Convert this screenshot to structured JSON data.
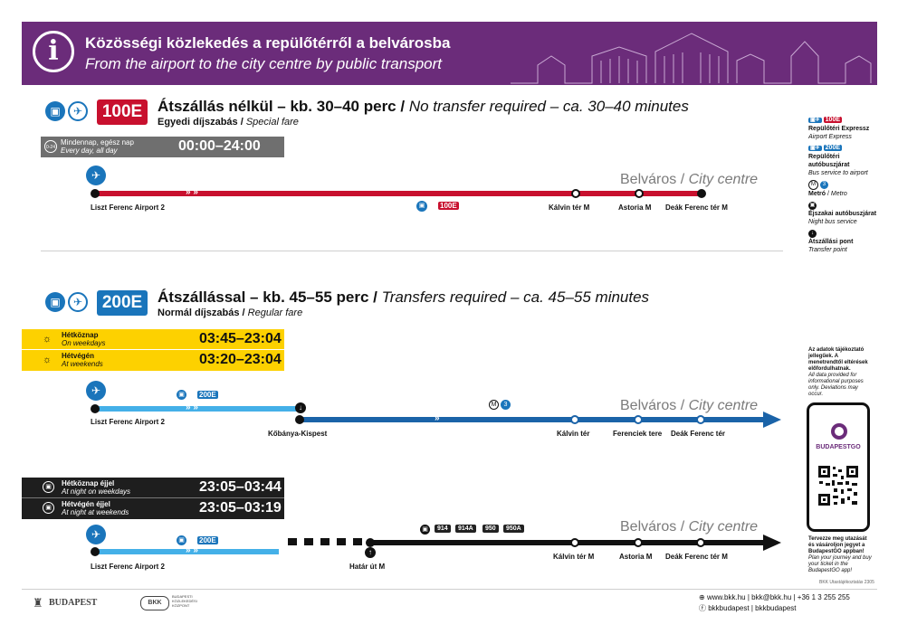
{
  "header": {
    "title_hu": "Közösségi közlekedés a repülőtérről a belvárosba",
    "title_en": "From the airport to the city centre by public transport",
    "info_glyph": "i"
  },
  "route100": {
    "badge": "100E",
    "title_hu": "Átszállás nélkül – kb. 30–40 perc",
    "title_en": "No transfer required – ca. 30–40 minutes",
    "fare_hu": "Egyedi díjszabás",
    "fare_en": "Special fare",
    "hours_icon": "0-24",
    "hours_hu": "Mindennap, egész nap",
    "hours_en": "Every day, all day",
    "hours_time": "00:00–24:00",
    "color": "#c8102e",
    "city_hu": "Belváros",
    "city_en": "City centre",
    "mid_badge": "100E",
    "stops": [
      "Liszt Ferenc Airport 2",
      "Kálvin tér M",
      "Astoria M",
      "Deák Ferenc tér M"
    ]
  },
  "route200": {
    "badge": "200E",
    "title_hu": "Átszállással – kb. 45–55 perc",
    "title_en": "Transfers required – ca. 45–55 minutes",
    "fare_hu": "Normál díjszabás",
    "fare_en": "Regular fare",
    "color": "#1a75bb",
    "day": {
      "rows": [
        {
          "hu": "Hétköznap",
          "en": "On weekdays",
          "time": "03:45–23:04"
        },
        {
          "hu": "Hétvégén",
          "en": "At weekends",
          "time": "03:20–23:04"
        }
      ],
      "bus_badge": "200E",
      "metro_num": "3",
      "city_hu": "Belváros",
      "city_en": "City centre",
      "stops": [
        "Liszt Ferenc Airport 2",
        "Kőbánya-Kispest",
        "Kálvin tér",
        "Ferenciek tere",
        "Deák Ferenc tér"
      ]
    },
    "night": {
      "rows": [
        {
          "hu": "Hétköznap éjjel",
          "en": "At night on weekdays",
          "time": "23:05–03:44"
        },
        {
          "hu": "Hétvégén éjjel",
          "en": "At night at weekends",
          "time": "23:05–03:19"
        }
      ],
      "bus_badge": "200E",
      "night_buses": [
        "914",
        "914A",
        "950",
        "950A"
      ],
      "city_hu": "Belváros",
      "city_en": "City centre",
      "stops": [
        "Liszt Ferenc Airport 2",
        "Határ út M",
        "Kálvin tér M",
        "Astoria M",
        "Deák Ferenc tér M"
      ]
    }
  },
  "legend": {
    "items": [
      {
        "badge": "100E",
        "hu": "Repülőtéri Expressz",
        "en": "Airport Express"
      },
      {
        "badge": "200E",
        "hu": "Repülőtéri autóbuszjárat",
        "en": "Bus service to airport"
      },
      {
        "badge": "3",
        "hu": "Metró",
        "en": "Metro"
      },
      {
        "badge": "",
        "hu": "Éjszakai autóbuszjárat",
        "en": "Night bus service"
      },
      {
        "badge": "",
        "hu": "Átszállási pont",
        "en": "Transfer point"
      }
    ],
    "note_hu": "Az adatok tájékoztató jellegűek. A menetrendtől eltérések előfordulhatnak.",
    "note_en": "All data provided for informational purposes only. Deviations may occur.",
    "app_name": "BUDAPESTGO",
    "app_text_hu": "Tervezze meg utazását és vásároljon jegyet a BudapestGO appban!",
    "app_text_en": "Plan your journey and buy your ticket in the BudapestGO app!",
    "code": "BKK Utastájékoztatás 2305"
  },
  "footer": {
    "budapest": "BUDAPEST",
    "bkk": "BKK",
    "bkk_sub": "BUDAPESTI KÖZLEKEDÉSI KÖZPONT",
    "contact": "www.bkk.hu | bkk@bkk.hu | +36 1 3 255 255",
    "social": "bkkbudapest | bkkbudapest"
  }
}
